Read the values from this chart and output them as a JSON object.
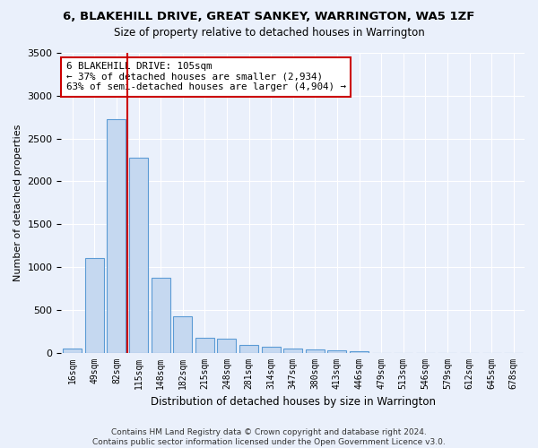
{
  "title": "6, BLAKEHILL DRIVE, GREAT SANKEY, WARRINGTON, WA5 1ZF",
  "subtitle": "Size of property relative to detached houses in Warrington",
  "xlabel": "Distribution of detached houses by size in Warrington",
  "ylabel": "Number of detached properties",
  "bar_values": [
    50,
    1100,
    2730,
    2280,
    870,
    425,
    170,
    160,
    90,
    65,
    50,
    35,
    25,
    20,
    0,
    0,
    0,
    0,
    0,
    0,
    0
  ],
  "categories": [
    "16sqm",
    "49sqm",
    "82sqm",
    "115sqm",
    "148sqm",
    "182sqm",
    "215sqm",
    "248sqm",
    "281sqm",
    "314sqm",
    "347sqm",
    "380sqm",
    "413sqm",
    "446sqm",
    "479sqm",
    "513sqm",
    "546sqm",
    "579sqm",
    "612sqm",
    "645sqm",
    "678sqm"
  ],
  "bar_color": "#c5d8f0",
  "bar_edge_color": "#5b9bd5",
  "vline_x_index": 2,
  "vline_color": "#cc0000",
  "annotation_text": "6 BLAKEHILL DRIVE: 105sqm\n← 37% of detached houses are smaller (2,934)\n63% of semi-detached houses are larger (4,904) →",
  "annotation_box_color": "#ffffff",
  "annotation_box_edge": "#cc0000",
  "ylim": [
    0,
    3500
  ],
  "yticks": [
    0,
    500,
    1000,
    1500,
    2000,
    2500,
    3000,
    3500
  ],
  "bg_color": "#eaf0fb",
  "grid_color": "#ffffff",
  "footer": "Contains HM Land Registry data © Crown copyright and database right 2024.\nContains public sector information licensed under the Open Government Licence v3.0."
}
